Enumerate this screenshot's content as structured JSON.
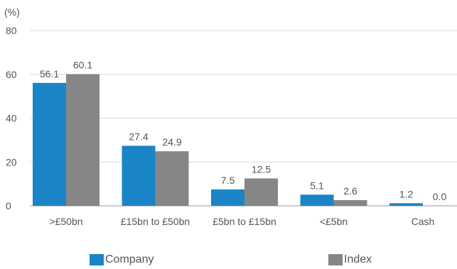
{
  "chart_data": {
    "type": "bar",
    "unit_label": "(%)",
    "categories": [
      ">£50bn",
      "£15bn to £50bn",
      "£5bn to £15bn",
      "<£5bn",
      "Cash"
    ],
    "series": [
      {
        "name": "Company",
        "color": "#1a85c6",
        "values": [
          56.1,
          27.4,
          7.5,
          5.1,
          1.2
        ],
        "labels": [
          "56.1",
          "27.4",
          "7.5",
          "5.1",
          "1.2"
        ]
      },
      {
        "name": "Index",
        "color": "#868686",
        "values": [
          60.1,
          24.9,
          12.5,
          2.6,
          0.0
        ],
        "labels": [
          "60.1",
          "24.9",
          "12.5",
          "2.6",
          "0.0"
        ]
      }
    ],
    "ylim": [
      0,
      80
    ],
    "yticks": [
      "0",
      "20",
      "40",
      "60",
      "80"
    ],
    "grid": true,
    "legend_placement": "bottom"
  }
}
